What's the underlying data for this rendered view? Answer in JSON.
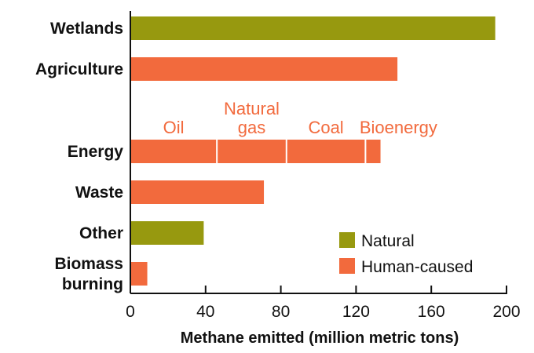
{
  "chart_data": {
    "type": "bar",
    "orientation": "horizontal",
    "xlabel": "Methane emitted (million metric tons)",
    "xlim": [
      0,
      200
    ],
    "xticks": [
      0,
      40,
      80,
      120,
      160,
      200
    ],
    "grid": false,
    "legend_position": "bottom-right",
    "categories": [
      {
        "label_lines": [
          "Wetlands"
        ],
        "value": 194,
        "series": "Natural"
      },
      {
        "label_lines": [
          "Agriculture"
        ],
        "value": 142,
        "series": "Human-caused"
      },
      {
        "label_lines": [
          "Energy"
        ],
        "value": 133,
        "series": "Human-caused",
        "segments": [
          {
            "name_lines": [
              "Oil"
            ],
            "value": 46
          },
          {
            "name_lines": [
              "Natural",
              "gas"
            ],
            "value": 37
          },
          {
            "name_lines": [
              "Coal"
            ],
            "value": 42
          },
          {
            "name_lines": [
              "Bioenergy"
            ],
            "value": 8
          }
        ]
      },
      {
        "label_lines": [
          "Waste"
        ],
        "value": 71,
        "series": "Human-caused"
      },
      {
        "label_lines": [
          "Other"
        ],
        "value": 39,
        "series": "Natural"
      },
      {
        "label_lines": [
          "Biomass",
          "burning"
        ],
        "value": 9,
        "series": "Human-caused"
      }
    ],
    "series": [
      {
        "name": "Natural",
        "color": "#97990f"
      },
      {
        "name": "Human-caused",
        "color": "#f26a3d"
      }
    ]
  }
}
